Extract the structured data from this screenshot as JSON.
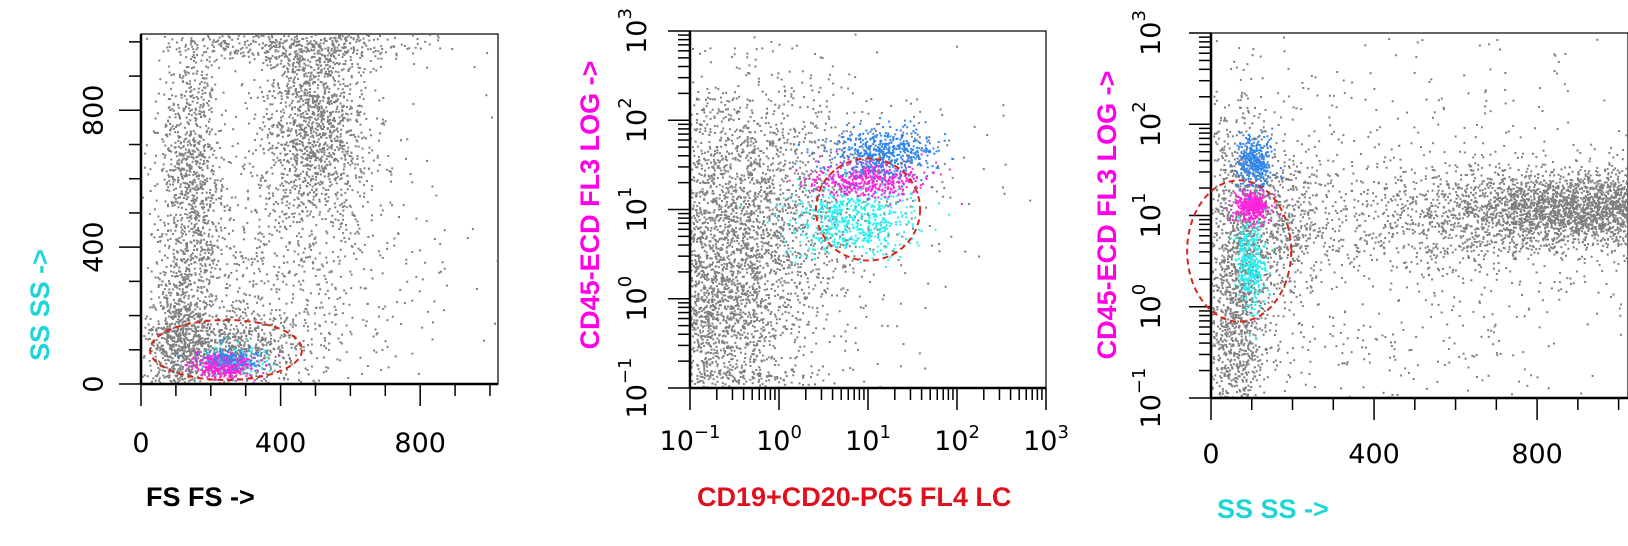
{
  "colors": {
    "background": "#ffffff",
    "axis": "#000000",
    "events": "#7f7f7f",
    "gate": "#d62718",
    "blue_population": "#2f86ee",
    "magenta_population": "#ff22dd",
    "cyan_population": "#22f2f2"
  },
  "chart_data": [
    {
      "type": "scatter",
      "title": "",
      "xlabel": "FS FS ->",
      "xlabel_color": "#000000",
      "ylabel": "SS SS ->",
      "ylabel_color": "#20d5d5",
      "x_scale": "linear",
      "y_scale": "linear",
      "xlim": [
        0,
        1023
      ],
      "ylim": [
        0,
        1023
      ],
      "x_ticks": [
        {
          "value": 0,
          "label": "0"
        },
        {
          "value": 400,
          "label": "400"
        },
        {
          "value": 800,
          "label": "800"
        }
      ],
      "y_ticks": [
        {
          "value": 0,
          "label": "0"
        },
        {
          "value": 400,
          "label": "400"
        },
        {
          "value": 800,
          "label": "800"
        }
      ],
      "gate": {
        "shape": "ellipse",
        "style": "dashed",
        "center": [
          235,
          40
        ],
        "radius": [
          215,
          68
        ]
      },
      "clusters": [
        {
          "population": "events",
          "center": [
            495,
            770
          ],
          "spread": [
            75,
            150
          ],
          "count": 1300
        },
        {
          "population": "events",
          "center": [
            430,
            990
          ],
          "spread": [
            190,
            30
          ],
          "count": 450
        },
        {
          "population": "events",
          "center": [
            140,
            560
          ],
          "spread": [
            45,
            250
          ],
          "count": 1100
        },
        {
          "population": "events",
          "center": [
            95,
            120
          ],
          "spread": [
            40,
            110
          ],
          "count": 600
        },
        {
          "population": "events",
          "center": [
            240,
            110
          ],
          "spread": [
            110,
            55
          ],
          "count": 700
        },
        {
          "population": "events",
          "center": [
            400,
            350
          ],
          "spread": [
            170,
            220
          ],
          "count": 700
        },
        {
          "population": "events",
          "center": [
            560,
            420
          ],
          "spread": [
            260,
            300
          ],
          "count": 180
        },
        {
          "population": "magenta_population",
          "center": [
            230,
            55
          ],
          "spread": [
            45,
            20
          ],
          "count": 330
        },
        {
          "population": "blue_population",
          "center": [
            255,
            80
          ],
          "spread": [
            45,
            15
          ],
          "count": 110
        },
        {
          "population": "cyan_population",
          "center": [
            270,
            70
          ],
          "spread": [
            45,
            18
          ],
          "count": 120
        }
      ]
    },
    {
      "type": "scatter",
      "title": "",
      "xlabel": "CD19+CD20-PC5 FL4 LC",
      "xlabel_color": "#e0101c",
      "ylabel": "CD45-ECD FL3 LOG ->",
      "ylabel_color": "#ff00e6",
      "x_scale": "log",
      "y_scale": "log",
      "xlim": [
        0.1,
        1000
      ],
      "ylim": [
        0.1,
        1000
      ],
      "x_ticks": [
        {
          "value": 0.1,
          "base": "10",
          "exp": "−1"
        },
        {
          "value": 1,
          "base": "10",
          "exp": "0"
        },
        {
          "value": 10,
          "base": "10",
          "exp": "1"
        },
        {
          "value": 100,
          "base": "10",
          "exp": "2"
        },
        {
          "value": 1000,
          "base": "10",
          "exp": "3"
        }
      ],
      "y_ticks": [
        {
          "value": 0.1,
          "base": "10",
          "exp": "−1"
        },
        {
          "value": 1,
          "base": "10",
          "exp": "0"
        },
        {
          "value": 10,
          "base": "10",
          "exp": "1"
        },
        {
          "value": 100,
          "base": "10",
          "exp": "2"
        },
        {
          "value": 1000,
          "base": "10",
          "exp": "3"
        }
      ],
      "gate": {
        "shape": "ellipse",
        "style": "dashed",
        "center": [
          10,
          10
        ],
        "radius_decades": [
          0.78,
          0.88
        ]
      },
      "clusters": [
        {
          "population": "events",
          "center": [
            0.28,
            5
          ],
          "spread": [
            0.6,
            0.9
          ],
          "count": 2800
        },
        {
          "population": "events",
          "center": [
            0.2,
            0.6
          ],
          "spread": [
            0.3,
            0.55
          ],
          "count": 700
        },
        {
          "population": "events",
          "center": [
            4,
            20
          ],
          "spread": [
            0.7,
            0.55
          ],
          "count": 400
        },
        {
          "population": "events",
          "center": [
            0.3,
            0.14
          ],
          "spread": [
            0.4,
            0.08
          ],
          "count": 90
        },
        {
          "population": "events",
          "center": [
            3,
            2
          ],
          "spread": [
            0.9,
            0.9
          ],
          "count": 60
        },
        {
          "population": "cyan_population",
          "center": [
            6,
            8
          ],
          "spread": [
            0.35,
            0.2
          ],
          "count": 560
        },
        {
          "population": "magenta_population",
          "center": [
            10,
            22
          ],
          "spread": [
            0.32,
            0.1
          ],
          "count": 430
        },
        {
          "population": "blue_population",
          "center": [
            14,
            45
          ],
          "spread": [
            0.3,
            0.14
          ],
          "count": 480
        }
      ]
    },
    {
      "type": "scatter",
      "title": "",
      "xlabel": "SS SS ->",
      "xlabel_color": "#20d5d5",
      "ylabel": "CD45-ECD FL3 LOG ->",
      "ylabel_color": "#ff00e6",
      "x_scale": "linear",
      "y_scale": "log",
      "xlim": [
        0,
        1023
      ],
      "ylim": [
        0.1,
        1000
      ],
      "x_ticks": [
        {
          "value": 0,
          "label": "0"
        },
        {
          "value": 400,
          "label": "400"
        },
        {
          "value": 800,
          "label": "800"
        }
      ],
      "y_ticks": [
        {
          "value": 0.1,
          "base": "10",
          "exp": "−1"
        },
        {
          "value": 1,
          "base": "10",
          "exp": "0"
        },
        {
          "value": 10,
          "base": "10",
          "exp": "1"
        },
        {
          "value": 100,
          "base": "10",
          "exp": "2"
        },
        {
          "value": 1000,
          "base": "10",
          "exp": "3"
        }
      ],
      "gate": {
        "shape": "ellipse",
        "style": "dashed",
        "center": [
          145,
          5
        ],
        "radius": [
          155
        ],
        "radius_decades": [
          0.88
        ]
      },
      "clusters": [
        {
          "population": "events",
          "center": [
            60,
            1.5
          ],
          "spread": [
            40,
            1.0
          ],
          "count": 1500
        },
        {
          "population": "events",
          "center": [
            175,
            8
          ],
          "spread": [
            55,
            0.5
          ],
          "count": 500
        },
        {
          "population": "events",
          "center": [
            950,
            12
          ],
          "spread": [
            180,
            0.2
          ],
          "count": 2800
        },
        {
          "population": "events",
          "center": [
            600,
            8
          ],
          "spread": [
            250,
            0.35
          ],
          "count": 900
        },
        {
          "population": "events",
          "center": [
            500,
            20
          ],
          "spread": [
            350,
            0.9
          ],
          "count": 500
        },
        {
          "population": "events",
          "center": [
            400,
            0.3
          ],
          "spread": [
            300,
            0.35
          ],
          "count": 180
        },
        {
          "population": "cyan_population",
          "center": [
            95,
            3
          ],
          "spread": [
            18,
            0.25
          ],
          "count": 330
        },
        {
          "population": "magenta_population",
          "center": [
            100,
            13
          ],
          "spread": [
            20,
            0.08
          ],
          "count": 350
        },
        {
          "population": "blue_population",
          "center": [
            105,
            38
          ],
          "spread": [
            20,
            0.14
          ],
          "count": 330
        }
      ]
    }
  ]
}
